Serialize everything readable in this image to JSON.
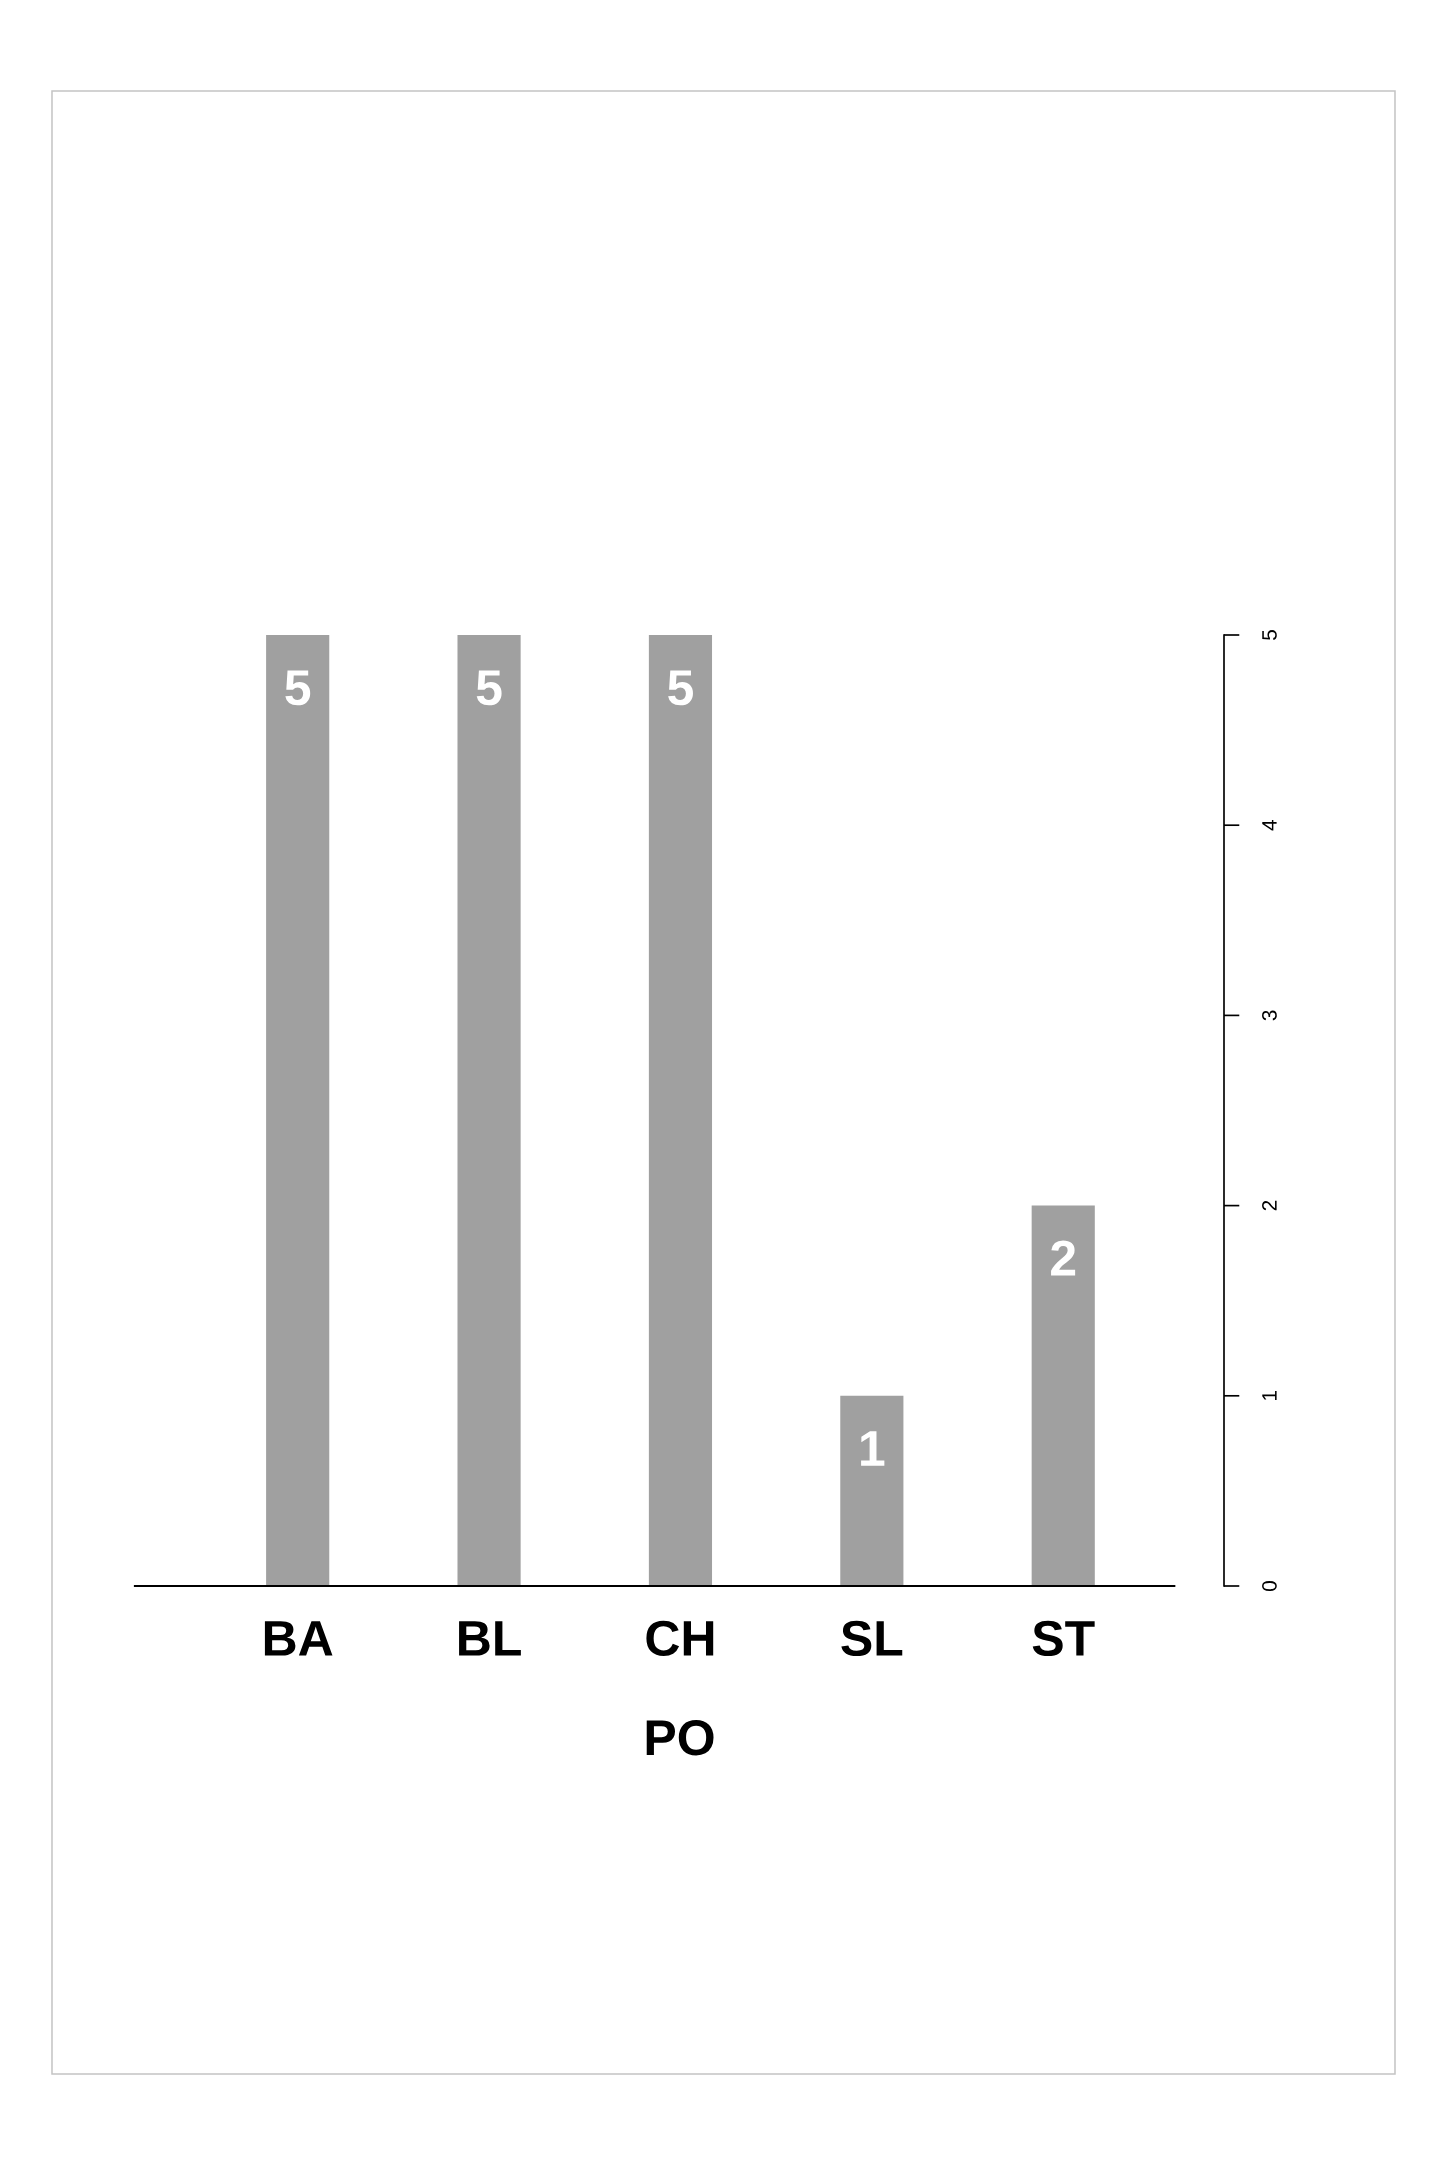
{
  "chart_data": {
    "type": "bar",
    "xlabel": "PO",
    "categories": [
      "BA",
      "BL",
      "CH",
      "SL",
      "ST"
    ],
    "values": [
      5,
      5,
      5,
      1,
      2
    ],
    "color": "#a0a0a0",
    "ylim": [
      0,
      5
    ],
    "yticks": [
      0,
      1,
      2,
      3,
      4,
      5
    ],
    "data_labels": true
  }
}
